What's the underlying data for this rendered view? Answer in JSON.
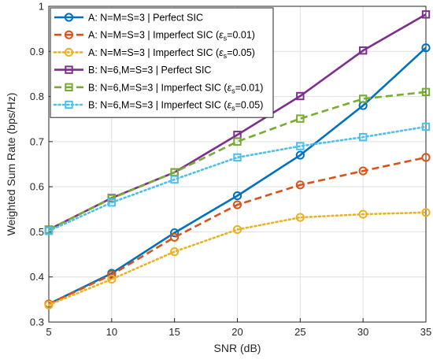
{
  "chart_data": {
    "type": "line",
    "xlabel": "SNR (dB)",
    "ylabel": "Weighted Sum Rate (bps/Hz)",
    "x": [
      5,
      10,
      15,
      20,
      25,
      30,
      35
    ],
    "xlim": [
      5,
      35
    ],
    "ylim": [
      0.3,
      1.0
    ],
    "xticks": [
      "5",
      "10",
      "15",
      "20",
      "25",
      "30",
      "35"
    ],
    "yticks": [
      "0.3",
      "0.4",
      "0.5",
      "0.6",
      "0.7",
      "0.8",
      "0.9",
      "1"
    ],
    "grid": true,
    "legend_position": "top-left",
    "series": [
      {
        "name": "A: N=M=S=3 | Perfect SIC",
        "name_parts": [
          "A: N=M=S=3 | Perfect SIC"
        ],
        "color": "#0072BD",
        "dash": "solid",
        "marker": "circle",
        "values": [
          0.34,
          0.408,
          0.498,
          0.58,
          0.67,
          0.78,
          0.908
        ]
      },
      {
        "name": "A: N=M=S=3 | Imperfect SIC (εs=0.01)",
        "name_parts": [
          "A: N=M=S=3 | Imperfect SIC (",
          "ε",
          "s",
          "=0.01)"
        ],
        "color": "#D95319",
        "dash": "dashed",
        "marker": "circle",
        "values": [
          0.34,
          0.405,
          0.488,
          0.56,
          0.604,
          0.635,
          0.665
        ]
      },
      {
        "name": "A: N=M=S=3 | Imperfect SIC (εs=0.05)",
        "name_parts": [
          "A: N=M=S=3 | Imperfect SIC (",
          "ε",
          "s",
          "=0.05)"
        ],
        "color": "#EDB120",
        "dash": "dotted",
        "marker": "circle",
        "values": [
          0.338,
          0.395,
          0.456,
          0.505,
          0.532,
          0.539,
          0.543
        ]
      },
      {
        "name": "B: N=6,M=S=3 | Perfect SIC",
        "name_parts": [
          "B: N=6,M=S=3 | Perfect SIC"
        ],
        "color": "#7E2F8E",
        "dash": "solid",
        "marker": "square",
        "values": [
          0.505,
          0.575,
          0.632,
          0.715,
          0.801,
          0.902,
          0.982
        ]
      },
      {
        "name": "B: N=6,M=S=3 | Imperfect SIC (εs=0.01)",
        "name_parts": [
          "B: N=6,M=S=3 | Imperfect SIC (",
          "ε",
          "s",
          "=0.01)"
        ],
        "color": "#77AC30",
        "dash": "dashed",
        "marker": "square",
        "values": [
          0.505,
          0.574,
          0.632,
          0.7,
          0.751,
          0.795,
          0.81
        ]
      },
      {
        "name": "B: N=6,M=S=3 | Imperfect SIC (εs=0.05)",
        "name_parts": [
          "B: N=6,M=S=3 | Imperfect SIC (",
          "ε",
          "s",
          "=0.05)"
        ],
        "color": "#4DBEEE",
        "dash": "dotted",
        "marker": "square",
        "values": [
          0.502,
          0.565,
          0.616,
          0.665,
          0.69,
          0.71,
          0.733
        ]
      }
    ]
  }
}
